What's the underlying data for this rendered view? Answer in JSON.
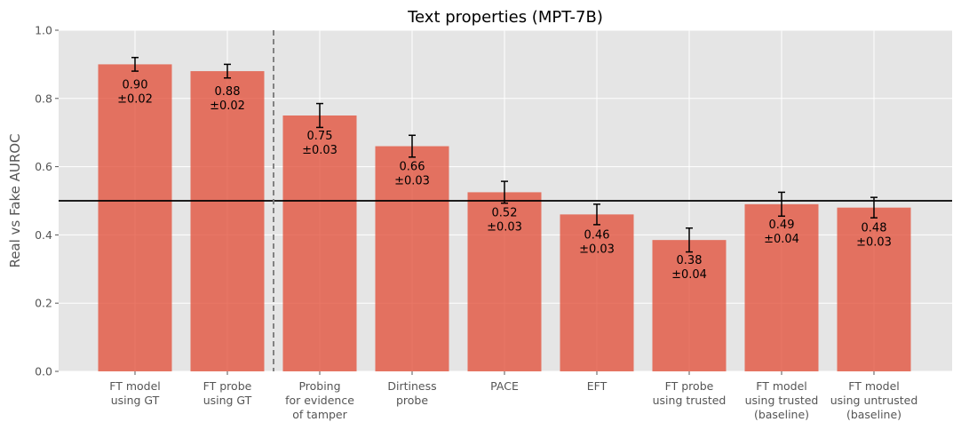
{
  "chart_data": {
    "type": "bar",
    "title": "Text properties (MPT-7B)",
    "xlabel": "",
    "ylabel": "Real vs Fake AUROC",
    "ylim": [
      0,
      1.0
    ],
    "yticks": [
      "0.0",
      "0.2",
      "0.4",
      "0.6",
      "0.8",
      "1.0"
    ],
    "categories": [
      [
        "FT model",
        "using GT"
      ],
      [
        "FT probe",
        "using GT"
      ],
      [
        "Probing",
        "for evidence",
        "of tamper"
      ],
      [
        "Dirtiness",
        "probe"
      ],
      [
        "PACE"
      ],
      [
        "EFT"
      ],
      [
        "FT probe",
        "using trusted"
      ],
      [
        "FT model",
        "using trusted",
        "(baseline)"
      ],
      [
        "FT model",
        "using untrusted",
        "(baseline)"
      ]
    ],
    "values": [
      0.9,
      0.88,
      0.75,
      0.66,
      0.525,
      0.46,
      0.385,
      0.49,
      0.48
    ],
    "errors": [
      0.02,
      0.02,
      0.035,
      0.032,
      0.032,
      0.03,
      0.035,
      0.035,
      0.03
    ],
    "labels": [
      [
        "0.90",
        "±0.02"
      ],
      [
        "0.88",
        "±0.02"
      ],
      [
        "0.75",
        "±0.03"
      ],
      [
        "0.66",
        "±0.03"
      ],
      [
        "0.52",
        "±0.03"
      ],
      [
        "0.46",
        "±0.03"
      ],
      [
        "0.38",
        "±0.04"
      ],
      [
        "0.49",
        "±0.04"
      ],
      [
        "0.48",
        "±0.03"
      ]
    ],
    "reference_line": 0.5,
    "divider_after_index": 1,
    "grid": true,
    "bar_color": "#e24a33",
    "background_color": "#e5e5e5"
  }
}
